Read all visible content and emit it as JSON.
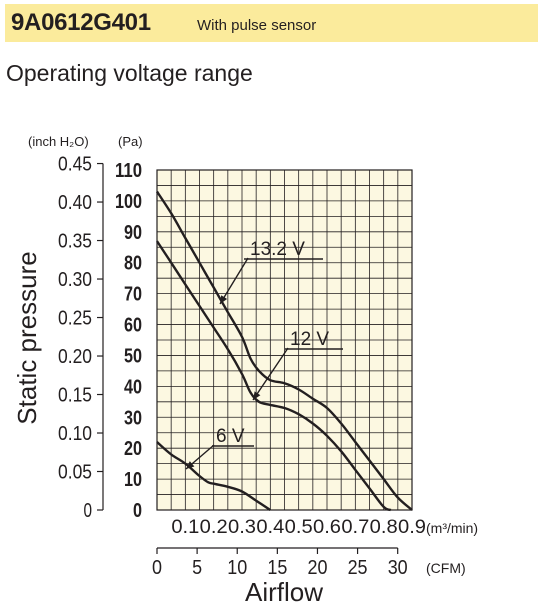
{
  "header": {
    "model": "9A0612G401",
    "subtitle": "With pulse sensor",
    "section_title": "Operating voltage range",
    "band_color": "#fbeb9c"
  },
  "chart_data": {
    "type": "line",
    "plot_background": "#fcf8e1",
    "grid": true,
    "xlabel": "Airflow",
    "ylabel": "Static pressure",
    "x_unit_primary": "(m³/min)",
    "x_unit_secondary": "(CFM)",
    "y_unit_inch": "(inch H₂O)",
    "y_unit_pa": "(Pa)",
    "x_range_m3min": [
      0,
      0.9
    ],
    "y_range_pa": [
      0,
      110
    ],
    "x_ticks_m3min": [
      "0.1",
      "0.2",
      "0.3",
      "0.4",
      "0.5",
      "0.6",
      "0.7",
      "0.8",
      "0.9"
    ],
    "x_ticks_cfm": [
      "0",
      "5",
      "10",
      "15",
      "20",
      "25",
      "30"
    ],
    "y_ticks_pa": [
      "0",
      "10",
      "20",
      "30",
      "40",
      "50",
      "60",
      "70",
      "80",
      "90",
      "100",
      "110"
    ],
    "y_ticks_inch": [
      "0",
      "0.05",
      "0.10",
      "0.15",
      "0.20",
      "0.25",
      "0.30",
      "0.35",
      "0.40",
      "0.45"
    ],
    "series": [
      {
        "name": "13.2 V",
        "x": [
          0,
          0.05,
          0.1,
          0.15,
          0.2,
          0.25,
          0.3,
          0.33,
          0.36,
          0.4,
          0.45,
          0.5,
          0.55,
          0.6,
          0.65,
          0.7,
          0.75,
          0.8,
          0.85,
          0.9
        ],
        "y": [
          103,
          96,
          88,
          80,
          72,
          64,
          56,
          49,
          45,
          42,
          41,
          39,
          36,
          33,
          28,
          22,
          16,
          10,
          4,
          0
        ]
      },
      {
        "name": "12 V",
        "x": [
          0,
          0.05,
          0.1,
          0.15,
          0.2,
          0.25,
          0.3,
          0.33,
          0.36,
          0.4,
          0.45,
          0.5,
          0.55,
          0.6,
          0.65,
          0.7,
          0.75,
          0.8,
          0.825
        ],
        "y": [
          87,
          80,
          73,
          66,
          59,
          52,
          44,
          38,
          35,
          34,
          33,
          31,
          28,
          24,
          19,
          13,
          7,
          1,
          0
        ]
      },
      {
        "name": "6 V",
        "x": [
          0,
          0.05,
          0.1,
          0.15,
          0.18,
          0.2,
          0.25,
          0.3,
          0.35,
          0.4
        ],
        "y": [
          22,
          18,
          15,
          11,
          9,
          8.5,
          7.5,
          6,
          3,
          0
        ]
      }
    ]
  }
}
